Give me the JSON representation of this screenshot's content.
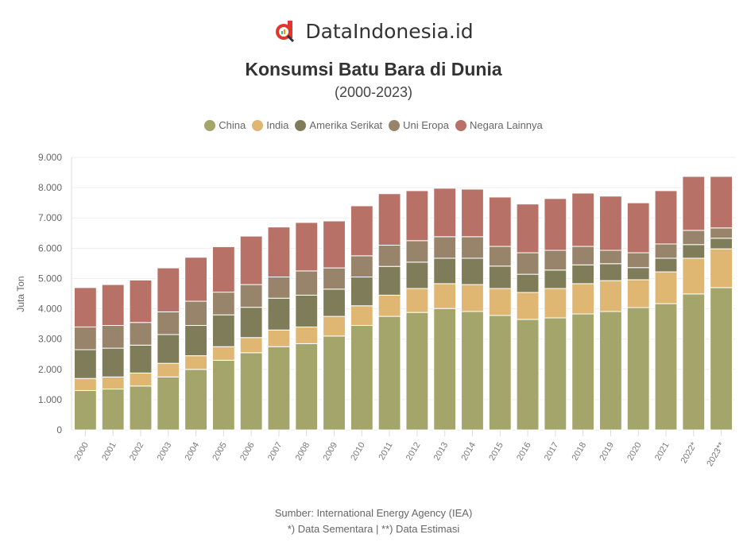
{
  "brand": {
    "name": "DataIndonesia.id"
  },
  "chart_data": {
    "type": "bar",
    "stacked": true,
    "title": "Konsumsi Batu Bara di Dunia",
    "subtitle": "(2000-2023)",
    "ylabel": "Juta Ton",
    "ylim": [
      0,
      9000
    ],
    "yticks": [
      "0",
      "1.000",
      "2.000",
      "3.000",
      "4.000",
      "5.000",
      "6.000",
      "7.000",
      "8.000",
      "9.000"
    ],
    "grid": true,
    "legend_position": "top",
    "categories": [
      "2000",
      "2001",
      "2002",
      "2003",
      "2004",
      "2005",
      "2006",
      "2007",
      "2008",
      "2009",
      "2010",
      "2011",
      "2012",
      "2013",
      "2014",
      "2015",
      "2016",
      "2017",
      "2018",
      "2019",
      "2020",
      "2021",
      "2022*",
      "2023**"
    ],
    "series": [
      {
        "name": "China",
        "color": "#a3a56a",
        "values": [
          1300,
          1350,
          1450,
          1750,
          2000,
          2300,
          2550,
          2750,
          2850,
          3100,
          3450,
          3750,
          3880,
          4010,
          3910,
          3780,
          3650,
          3700,
          3830,
          3910,
          4040,
          4170,
          4490,
          4700
        ]
      },
      {
        "name": "India",
        "color": "#dfb672",
        "values": [
          400,
          400,
          430,
          450,
          450,
          450,
          500,
          550,
          550,
          650,
          650,
          700,
          790,
          820,
          890,
          890,
          890,
          970,
          1000,
          1020,
          920,
          1050,
          1180,
          1280
        ]
      },
      {
        "name": "Amerika Serikat",
        "color": "#7f7c59",
        "values": [
          950,
          950,
          920,
          950,
          1000,
          1050,
          1000,
          1050,
          1050,
          900,
          950,
          950,
          870,
          840,
          870,
          740,
          600,
          610,
          620,
          560,
          400,
          450,
          450,
          350
        ]
      },
      {
        "name": "Uni Eropa",
        "color": "#97846a",
        "values": [
          750,
          750,
          750,
          750,
          800,
          750,
          750,
          700,
          800,
          700,
          700,
          700,
          710,
          710,
          710,
          650,
          710,
          650,
          610,
          440,
          490,
          470,
          470,
          340
        ]
      },
      {
        "name": "Negara Lainnya",
        "color": "#b87166",
        "values": [
          1300,
          1350,
          1400,
          1450,
          1450,
          1500,
          1600,
          1650,
          1600,
          1550,
          1650,
          1700,
          1650,
          1600,
          1570,
          1630,
          1610,
          1710,
          1760,
          1790,
          1650,
          1760,
          1780,
          1700
        ]
      }
    ]
  },
  "footer": {
    "source": "Sumber: International Energy Agency (IEA)",
    "note": "*) Data Sementara | **) Data Estimasi"
  }
}
